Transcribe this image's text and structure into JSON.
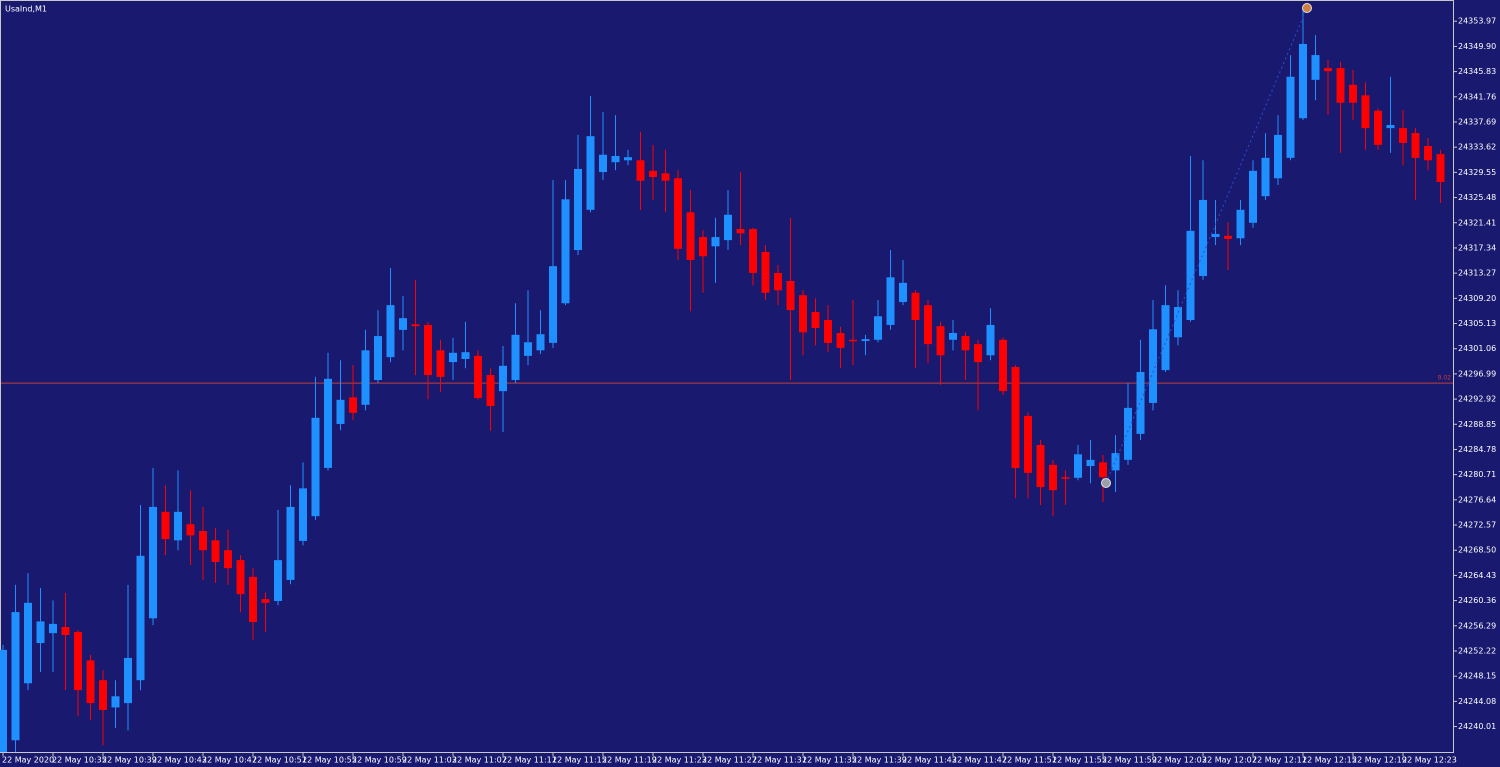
{
  "chart_data": {
    "type": "candlestick",
    "title": "UsaInd,M1",
    "background": "#191970",
    "up_color": "#1e90ff",
    "down_color": "#ff0000",
    "categories": [
      "22 May 2020",
      null,
      null,
      null,
      "22 May 10:35",
      null,
      null,
      null,
      "22 May 10:39",
      null,
      null,
      null,
      "22 May 10:43",
      null,
      null,
      null,
      "22 May 10:47",
      null,
      null,
      null,
      "22 May 10:51",
      null,
      null,
      null,
      "22 May 10:55",
      null,
      null,
      null,
      "22 May 10:59",
      null,
      null,
      null,
      "22 May 11:03",
      null,
      null,
      null,
      "22 May 11:07",
      null,
      null,
      null,
      "22 May 11:11",
      null,
      null,
      null,
      "22 May 11:15",
      null,
      null,
      null,
      "22 May 11:19",
      null,
      null,
      null,
      "22 May 11:23",
      null,
      null,
      null,
      "22 May 11:27",
      null,
      null,
      null,
      "22 May 11:31",
      null,
      null,
      null,
      "22 May 11:35",
      null,
      null,
      null,
      "22 May 11:39",
      null,
      null,
      null,
      "22 May 11:43",
      null,
      null,
      null,
      "22 May 11:47",
      null,
      null,
      null,
      "22 May 11:51",
      null,
      null,
      null,
      "22 May 11:55",
      null,
      null,
      null,
      "22 May 11:59",
      null,
      null,
      null,
      "22 May 12:03",
      null,
      null,
      null,
      "22 May 12:07",
      null,
      null,
      null,
      "22 May 12:11",
      null,
      null,
      null,
      "22 May 12:15",
      null,
      null,
      null,
      "22 May 12:19",
      null,
      null,
      null,
      "22 May 12:23",
      null,
      null,
      null
    ],
    "open": [
      24235.9,
      24237.8,
      24247.0,
      24253.5,
      24255.1,
      24256.1,
      24255.3,
      24250.7,
      24247.5,
      24243.1,
      24243.8,
      24247.5,
      24257.5,
      24274.7,
      24270.1,
      24272.7,
      24271.6,
      24270.1,
      24268.5,
      24266.9,
      24264.2,
      24260.6,
      24260.3,
      24263.7,
      24270.0,
      24274.0,
      24281.8,
      24288.9,
      24293.2,
      24292.0,
      24296.0,
      24299.7,
      24304.1,
      24305.0,
      24304.9,
      24300.8,
      24298.9,
      24299.4,
      24299.9,
      24296.8,
      24294.2,
      24296.0,
      24299.9,
      24300.8,
      24302.0,
      24308.4,
      24317.0,
      24323.5,
      24329.6,
      24331.2,
      24331.5,
      24331.5,
      24329.8,
      24329.4,
      24328.6,
      24323.1,
      24319.1,
      24317.6,
      24318.6,
      24320.4,
      24320.4,
      24316.7,
      24313.3,
      24312.0,
      24309.7,
      24307.0,
      24305.7,
      24303.6,
      24302.5,
      24302.3,
      24302.5,
      24304.9,
      24308.6,
      24310.1,
      24308.1,
      24304.7,
      24302.5,
      24303.1,
      24301.8,
      24300.0,
      24302.5,
      24298.1,
      24290.2,
      24285.5,
      24282.3,
      24280.3,
      24280.2,
      24282.1,
      24282.7,
      24281.4,
      24283.1,
      24287.3,
      24292.3,
      24297.6,
      24302.9,
      24305.7,
      24312.8,
      24319.1,
      24319.3,
      24318.9,
      24321.4,
      24325.7,
      24328.6,
      24331.9,
      24338.3,
      24344.5,
      24346.4,
      24346.4,
      24343.7,
      24342.0,
      24339.5,
      24336.7,
      24336.7,
      24335.9,
      24333.8,
      24332.5
    ],
    "high": [
      24253.2,
      24262.9,
      24264.8,
      24262.4,
      24260.4,
      24261.6,
      24255.6,
      24251.6,
      24249.1,
      24247.5,
      24262.9,
      24275.8,
      24281.8,
      24279.0,
      24281.4,
      24278.2,
      24275.5,
      24272.1,
      24271.8,
      24267.7,
      24265.6,
      24261.7,
      24275.0,
      24279.0,
      24282.7,
      24296.5,
      24300.4,
      24299.2,
      24298.4,
      24304.1,
      24307.3,
      24314.1,
      24309.6,
      24312.2,
      24305.4,
      24302.5,
      24302.8,
      24305.4,
      24300.8,
      24297.9,
      24301.5,
      24308.4,
      24310.5,
      24307.3,
      24328.3,
      24328.3,
      24335.6,
      24341.9,
      24339.3,
      24338.8,
      24333.2,
      24336.1,
      24334.0,
      24333.2,
      24329.9,
      24326.7,
      24320.2,
      24322.2,
      24326.7,
      24329.6,
      24320.6,
      24317.8,
      24314.6,
      24322.2,
      24310.5,
      24309.2,
      24308.1,
      24304.6,
      24308.9,
      24303.3,
      24308.9,
      24317.0,
      24315.4,
      24310.5,
      24308.9,
      24305.4,
      24305.7,
      24303.7,
      24302.5,
      24307.6,
      24302.9,
      24298.4,
      24290.8,
      24286.3,
      24283.1,
      24281.4,
      24285.5,
      24286.3,
      24283.9,
      24287.1,
      24295.5,
      24302.5,
      24308.9,
      24311.3,
      24310.5,
      24332.2,
      24331.5,
      24325.1,
      24321.5,
      24325.1,
      24331.5,
      24335.9,
      24338.8,
      24348.5,
      24356.1,
      24351.7,
      24347.7,
      24347.4,
      24346.1,
      24344.1,
      24339.9,
      24345.0,
      24339.6,
      24336.7,
      24335.1,
      24333.2
    ],
    "low": [
      24235.9,
      24235.9,
      24245.9,
      24248.8,
      24248.8,
      24245.9,
      24241.7,
      24241.0,
      24237.0,
      24239.8,
      24239.4,
      24245.9,
      24256.4,
      24267.7,
      24268.5,
      24266.1,
      24263.7,
      24263.2,
      24262.9,
      24258.5,
      24254.0,
      24255.3,
      24259.6,
      24263.0,
      24269.3,
      24273.4,
      24281.4,
      24287.9,
      24289.5,
      24291.1,
      24295.5,
      24298.9,
      24300.8,
      24296.8,
      24292.9,
      24294.1,
      24296.0,
      24297.9,
      24292.8,
      24287.8,
      24287.6,
      24295.5,
      24298.4,
      24300.2,
      24301.2,
      24308.1,
      24316.2,
      24323.1,
      24328.3,
      24329.9,
      24330.7,
      24323.5,
      24325.1,
      24323.1,
      24315.4,
      24307.1,
      24310.1,
      24311.7,
      24317.0,
      24317.8,
      24311.3,
      24308.9,
      24308.1,
      24296.0,
      24300.0,
      24301.6,
      24300.5,
      24297.9,
      24298.4,
      24300.0,
      24302.1,
      24304.1,
      24308.1,
      24297.9,
      24298.7,
      24295.2,
      24300.8,
      24296.0,
      24291.1,
      24299.2,
      24293.6,
      24276.9,
      24276.9,
      24275.8,
      24274.0,
      24275.8,
      24279.8,
      24279.3,
      24276.3,
      24277.9,
      24282.3,
      24286.3,
      24291.1,
      24297.3,
      24301.6,
      24305.4,
      24312.2,
      24317.8,
      24313.8,
      24317.8,
      24320.6,
      24325.1,
      24327.5,
      24331.5,
      24338.0,
      24341.2,
      24338.8,
      24332.7,
      24338.0,
      24333.2,
      24333.2,
      24332.7,
      24330.7,
      24325.1,
      24329.9,
      24324.6
    ],
    "close": [
      24252.4,
      24258.5,
      24260.0,
      24257.0,
      24256.6,
      24254.8,
      24245.9,
      24243.8,
      24242.7,
      24244.9,
      24251.1,
      24267.6,
      24275.5,
      24270.3,
      24274.7,
      24270.9,
      24268.5,
      24266.6,
      24265.6,
      24261.4,
      24256.9,
      24260.0,
      24266.9,
      24275.5,
      24278.5,
      24289.9,
      24296.2,
      24292.8,
      24290.7,
      24300.8,
      24303.1,
      24308.1,
      24306.0,
      24304.7,
      24296.8,
      24296.5,
      24300.4,
      24300.5,
      24293.1,
      24291.8,
      24298.3,
      24303.3,
      24302.1,
      24303.4,
      24314.4,
      24325.2,
      24330.1,
      24335.4,
      24332.4,
      24332.2,
      24332.0,
      24328.2,
      24328.8,
      24328.2,
      24317.2,
      24315.4,
      24316.0,
      24319.1,
      24322.7,
      24319.7,
      24313.3,
      24310.1,
      24310.5,
      24307.3,
      24303.7,
      24304.4,
      24302.0,
      24301.2,
      24302.3,
      24302.6,
      24306.3,
      24312.6,
      24311.7,
      24305.7,
      24301.8,
      24300.0,
      24303.6,
      24300.8,
      24298.9,
      24304.9,
      24294.2,
      24281.8,
      24281.0,
      24278.7,
      24278.2,
      24280.2,
      24284.0,
      24283.1,
      24280.3,
      24284.2,
      24291.5,
      24297.3,
      24304.2,
      24308.1,
      24307.8,
      24320.1,
      24325.1,
      24319.6,
      24318.8,
      24323.5,
      24329.8,
      24331.9,
      24335.6,
      24345.0,
      24350.3,
      24348.5,
      24345.9,
      24340.8,
      24340.8,
      24336.7,
      24334.0,
      24337.2,
      24334.3,
      24331.9,
      24331.5,
      24328.0
    ],
    "ylim": [
      24235.9,
      24357.4
    ],
    "yticks": [
      24353.97,
      {
        "value": 24349.9,
        "label": "24349.90"
      },
      24345.83,
      24341.76,
      24337.69,
      24333.62,
      24329.55,
      24325.48,
      24321.41,
      24317.34,
      24313.27,
      {
        "value": 24309.2,
        "label": "24309.20"
      },
      24305.13,
      24301.06,
      24296.99,
      24292.92,
      24288.85,
      24284.78,
      24280.71,
      24276.64,
      24272.57,
      {
        "value": 24268.5,
        "label": "24268.50"
      },
      24264.43,
      24260.36,
      24256.29,
      24252.22,
      24248.15,
      24244.08,
      24240.01
    ],
    "level": {
      "value": 24295.5,
      "label": "9.02",
      "color": "#c0403a"
    }
  }
}
